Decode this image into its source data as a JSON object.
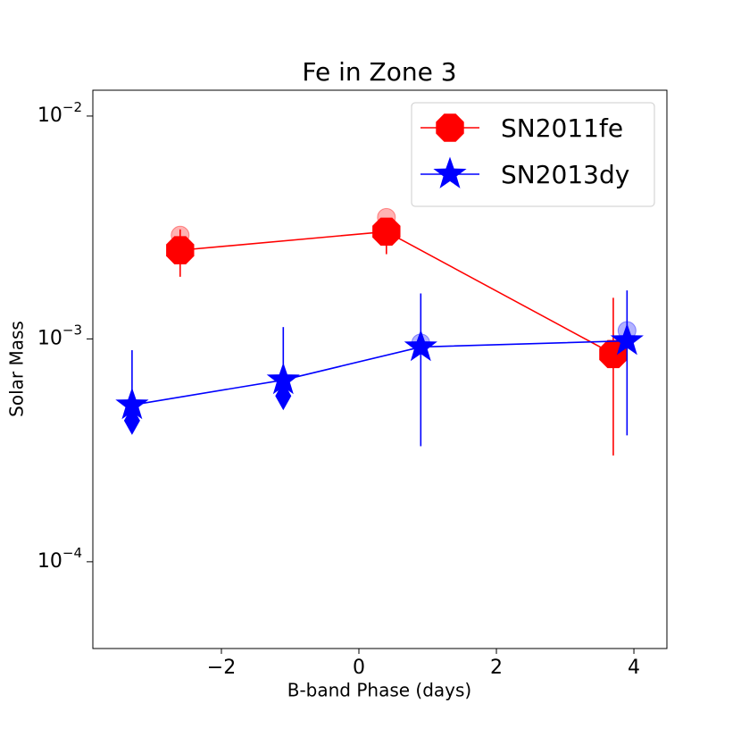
{
  "chart_data": {
    "type": "line",
    "title": "Fe in Zone 3",
    "xlabel": "B-band Phase (days)",
    "ylabel": "Solar Mass",
    "xlim": [
      -3.87,
      4.48
    ],
    "ylim": [
      4.08e-05,
      0.01306
    ],
    "yscale": "log",
    "xticks": [
      {
        "value": -2,
        "label": "−2"
      },
      0,
      2,
      4
    ],
    "yticks": [
      {
        "value": 0.0001,
        "label": "10",
        "exponent": "−4"
      },
      {
        "value": 0.001,
        "label": "10",
        "exponent": "−3"
      },
      {
        "value": 0.01,
        "label": "10",
        "exponent": "−2"
      }
    ],
    "legend": "upper right",
    "series": [
      {
        "name": "SN2011fe",
        "color": "#ff0000",
        "marker": "octagon",
        "x": [
          -2.6,
          0.4,
          3.7
        ],
        "values": [
          0.0025,
          0.00303,
          0.000855
        ],
        "error_low": [
          0.0019,
          0.0024,
          0.0003
        ],
        "error_high": [
          0.0031,
          0.0034,
          0.00153
        ],
        "faded_values": [
          0.00292,
          0.00351,
          null
        ]
      },
      {
        "name": "SN2013dy",
        "color": "#0000ff",
        "marker": "star",
        "x": [
          -3.3,
          -1.1,
          0.9,
          3.9
        ],
        "values": [
          0.000505,
          0.000654,
          0.00092,
          0.00098
        ],
        "error_low": [
          0.00048,
          0.00062,
          0.00033,
          0.000369
        ],
        "error_high": [
          0.00089,
          0.00113,
          0.0016,
          0.00165
        ],
        "faded_values": [
          null,
          null,
          0.00096,
          0.00109
        ],
        "limit_values": [
          0.00043,
          0.000555,
          null,
          null
        ]
      }
    ]
  }
}
